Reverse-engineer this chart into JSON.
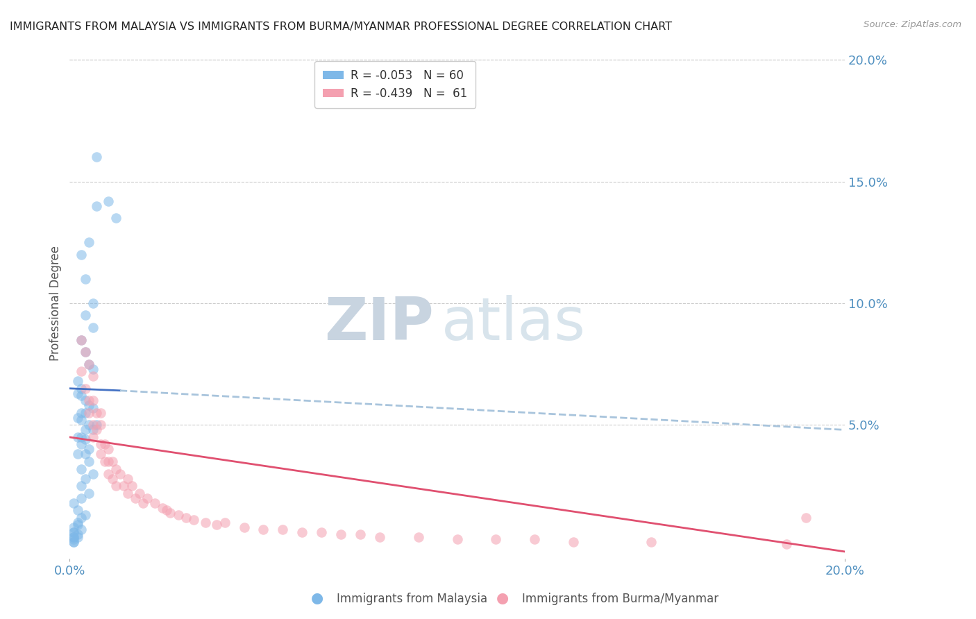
{
  "title": "IMMIGRANTS FROM MALAYSIA VS IMMIGRANTS FROM BURMA/MYANMAR PROFESSIONAL DEGREE CORRELATION CHART",
  "source": "Source: ZipAtlas.com",
  "ylabel": "Professional Degree",
  "right_ytick_labels": [
    "20.0%",
    "15.0%",
    "10.0%",
    "5.0%"
  ],
  "right_ytick_values": [
    0.2,
    0.15,
    0.1,
    0.05
  ],
  "xmin": 0.0,
  "xmax": 0.2,
  "ymin": -0.005,
  "ymax": 0.205,
  "legend_r_malaysia": "-0.053",
  "legend_n_malaysia": "60",
  "legend_r_burma": "-0.439",
  "legend_n_burma": "61",
  "color_malaysia": "#7eb8e8",
  "color_burma": "#f4a0b0",
  "color_trendline_malaysia": "#4472c4",
  "color_trendline_burma": "#e05070",
  "color_trendline_ext": "#a8c4dc",
  "color_axis_labels": "#5090c0",
  "color_title": "#222222",
  "color_grid": "#cccccc",
  "malaysia_x": [
    0.007,
    0.01,
    0.007,
    0.012,
    0.005,
    0.003,
    0.004,
    0.006,
    0.004,
    0.006,
    0.003,
    0.004,
    0.005,
    0.006,
    0.002,
    0.003,
    0.002,
    0.003,
    0.004,
    0.005,
    0.006,
    0.003,
    0.004,
    0.002,
    0.003,
    0.005,
    0.007,
    0.006,
    0.004,
    0.003,
    0.002,
    0.004,
    0.003,
    0.005,
    0.002,
    0.004,
    0.005,
    0.003,
    0.006,
    0.004,
    0.003,
    0.005,
    0.003,
    0.001,
    0.002,
    0.004,
    0.003,
    0.002,
    0.001,
    0.003,
    0.001,
    0.002,
    0.001,
    0.002,
    0.001,
    0.001,
    0.002,
    0.001,
    0.001,
    0.001
  ],
  "malaysia_y": [
    0.16,
    0.142,
    0.14,
    0.135,
    0.125,
    0.12,
    0.11,
    0.1,
    0.095,
    0.09,
    0.085,
    0.08,
    0.075,
    0.073,
    0.068,
    0.065,
    0.063,
    0.062,
    0.06,
    0.058,
    0.057,
    0.055,
    0.055,
    0.053,
    0.052,
    0.05,
    0.05,
    0.048,
    0.048,
    0.045,
    0.045,
    0.044,
    0.042,
    0.04,
    0.038,
    0.038,
    0.035,
    0.032,
    0.03,
    0.028,
    0.025,
    0.022,
    0.02,
    0.018,
    0.015,
    0.013,
    0.012,
    0.01,
    0.008,
    0.007,
    0.006,
    0.005,
    0.004,
    0.004,
    0.003,
    0.002,
    0.009,
    0.006,
    0.004,
    0.002
  ],
  "burma_x": [
    0.003,
    0.003,
    0.004,
    0.004,
    0.005,
    0.005,
    0.005,
    0.006,
    0.006,
    0.006,
    0.006,
    0.007,
    0.007,
    0.008,
    0.008,
    0.008,
    0.008,
    0.009,
    0.009,
    0.01,
    0.01,
    0.01,
    0.011,
    0.011,
    0.012,
    0.012,
    0.013,
    0.014,
    0.015,
    0.015,
    0.016,
    0.017,
    0.018,
    0.019,
    0.02,
    0.022,
    0.024,
    0.025,
    0.026,
    0.028,
    0.03,
    0.032,
    0.035,
    0.038,
    0.04,
    0.045,
    0.05,
    0.055,
    0.06,
    0.065,
    0.07,
    0.075,
    0.08,
    0.09,
    0.1,
    0.11,
    0.12,
    0.13,
    0.15,
    0.185,
    0.19
  ],
  "burma_y": [
    0.085,
    0.072,
    0.08,
    0.065,
    0.075,
    0.06,
    0.055,
    0.07,
    0.06,
    0.05,
    0.045,
    0.055,
    0.048,
    0.055,
    0.05,
    0.042,
    0.038,
    0.042,
    0.035,
    0.04,
    0.035,
    0.03,
    0.035,
    0.028,
    0.032,
    0.025,
    0.03,
    0.025,
    0.028,
    0.022,
    0.025,
    0.02,
    0.022,
    0.018,
    0.02,
    0.018,
    0.016,
    0.015,
    0.014,
    0.013,
    0.012,
    0.011,
    0.01,
    0.009,
    0.01,
    0.008,
    0.007,
    0.007,
    0.006,
    0.006,
    0.005,
    0.005,
    0.004,
    0.004,
    0.003,
    0.003,
    0.003,
    0.002,
    0.002,
    0.001,
    0.012
  ],
  "watermark_zip": "ZIP",
  "watermark_atlas": "atlas",
  "watermark_color": "#c8d8e8"
}
